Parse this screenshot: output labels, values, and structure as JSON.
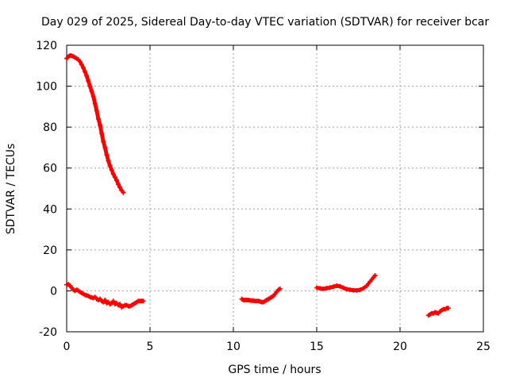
{
  "chart_data": {
    "type": "scatter",
    "title": "Day 029 of 2025, Sidereal Day-to-day VTEC variation (SDTVAR) for receiver bcar",
    "xlabel": "GPS time / hours",
    "ylabel": "SDTVAR / TECUs",
    "xlim": [
      0,
      25
    ],
    "ylim": [
      -20,
      120
    ],
    "xticks": [
      0,
      5,
      10,
      15,
      20,
      25
    ],
    "yticks": [
      -20,
      0,
      20,
      40,
      60,
      80,
      100,
      120
    ],
    "xtick_labels": [
      "0",
      "5",
      "10",
      "15",
      "20",
      "25"
    ],
    "ytick_labels": [
      "-20",
      "0",
      "20",
      "40",
      "60",
      "80",
      "100",
      "120"
    ],
    "grid": true,
    "marker": "+",
    "marker_color": "#ff0000",
    "series": [
      {
        "name": "satellite-track-1",
        "x": [
          0.0,
          0.1,
          0.2,
          0.3,
          0.4,
          0.5,
          0.6,
          0.7,
          0.8,
          0.9,
          1.0,
          1.1,
          1.2,
          1.3,
          1.4,
          1.5,
          1.6,
          1.7,
          1.8,
          1.9,
          2.0,
          2.1,
          2.2,
          2.3,
          2.4,
          2.5,
          2.6,
          2.7,
          2.8,
          2.9,
          3.0,
          3.1,
          3.2,
          3.3,
          3.4
        ],
        "y": [
          113.5,
          114.5,
          115.0,
          114.8,
          114.5,
          114.0,
          113.5,
          113.0,
          112.0,
          110.5,
          109.0,
          107.0,
          105.0,
          102.5,
          100.0,
          97.5,
          95.0,
          91.5,
          88.0,
          84.0,
          81.0,
          77.0,
          73.0,
          70.0,
          66.5,
          63.5,
          61.0,
          59.0,
          57.0,
          55.5,
          54.0,
          52.0,
          50.5,
          49.0,
          48.0
        ]
      },
      {
        "name": "satellite-track-2",
        "x": [
          0.0,
          0.1,
          0.2,
          0.3,
          0.4,
          0.5,
          0.6,
          0.7,
          0.8,
          0.9,
          1.0,
          1.1,
          1.2,
          1.3,
          1.4,
          1.5,
          1.6,
          1.7,
          1.8,
          1.9,
          2.0,
          2.1,
          2.2,
          2.3,
          2.4,
          2.5,
          2.6,
          2.7,
          2.8,
          2.9,
          3.0,
          3.1,
          3.2,
          3.3,
          3.4,
          3.5,
          3.6,
          3.7,
          3.8,
          3.9,
          4.0,
          4.1,
          4.2,
          4.3,
          4.4,
          4.5,
          4.6
        ],
        "y": [
          3.0,
          3.2,
          2.5,
          1.5,
          0.5,
          0.0,
          0.5,
          0.0,
          -0.5,
          -1.0,
          -1.5,
          -2.0,
          -2.2,
          -2.5,
          -3.0,
          -3.2,
          -3.5,
          -3.0,
          -4.0,
          -4.5,
          -4.0,
          -5.0,
          -5.5,
          -4.5,
          -6.0,
          -5.5,
          -6.5,
          -6.0,
          -5.0,
          -6.5,
          -6.0,
          -7.0,
          -6.5,
          -8.0,
          -7.5,
          -7.0,
          -7.0,
          -7.5,
          -7.5,
          -7.0,
          -6.5,
          -6.0,
          -5.5,
          -5.0,
          -5.0,
          -5.0,
          -5.0
        ]
      },
      {
        "name": "satellite-track-3",
        "x": [
          10.5,
          10.6,
          10.7,
          10.8,
          10.9,
          11.0,
          11.1,
          11.2,
          11.3,
          11.4,
          11.5,
          11.6,
          11.7,
          11.8,
          11.9,
          12.0,
          12.1,
          12.2,
          12.3,
          12.4,
          12.5,
          12.6,
          12.7,
          12.8
        ],
        "y": [
          -4.0,
          -4.5,
          -4.5,
          -4.5,
          -4.5,
          -4.7,
          -4.8,
          -4.8,
          -5.0,
          -5.0,
          -5.0,
          -5.2,
          -5.5,
          -5.5,
          -5.0,
          -4.5,
          -4.0,
          -3.5,
          -3.0,
          -2.5,
          -1.5,
          -0.5,
          0.5,
          1.0
        ]
      },
      {
        "name": "satellite-track-4",
        "x": [
          15.0,
          15.2,
          15.4,
          15.6,
          15.8,
          16.0,
          16.2,
          16.4,
          16.6,
          16.8,
          17.0,
          17.2,
          17.4,
          17.6,
          17.8,
          18.0,
          18.2,
          18.4,
          18.5
        ],
        "y": [
          1.5,
          1.2,
          1.0,
          1.3,
          1.6,
          2.0,
          2.5,
          2.2,
          1.5,
          0.8,
          0.5,
          0.3,
          0.2,
          0.5,
          1.2,
          2.5,
          4.5,
          6.5,
          7.5
        ]
      },
      {
        "name": "satellite-track-5",
        "x": [
          21.7,
          21.8,
          21.9,
          22.0,
          22.1,
          22.2,
          22.3,
          22.4,
          22.5,
          22.6,
          22.7,
          22.8,
          22.9
        ],
        "y": [
          -12.0,
          -11.5,
          -11.0,
          -11.0,
          -10.5,
          -10.8,
          -11.0,
          -10.0,
          -9.5,
          -9.0,
          -9.0,
          -8.5,
          -8.5
        ]
      }
    ]
  }
}
